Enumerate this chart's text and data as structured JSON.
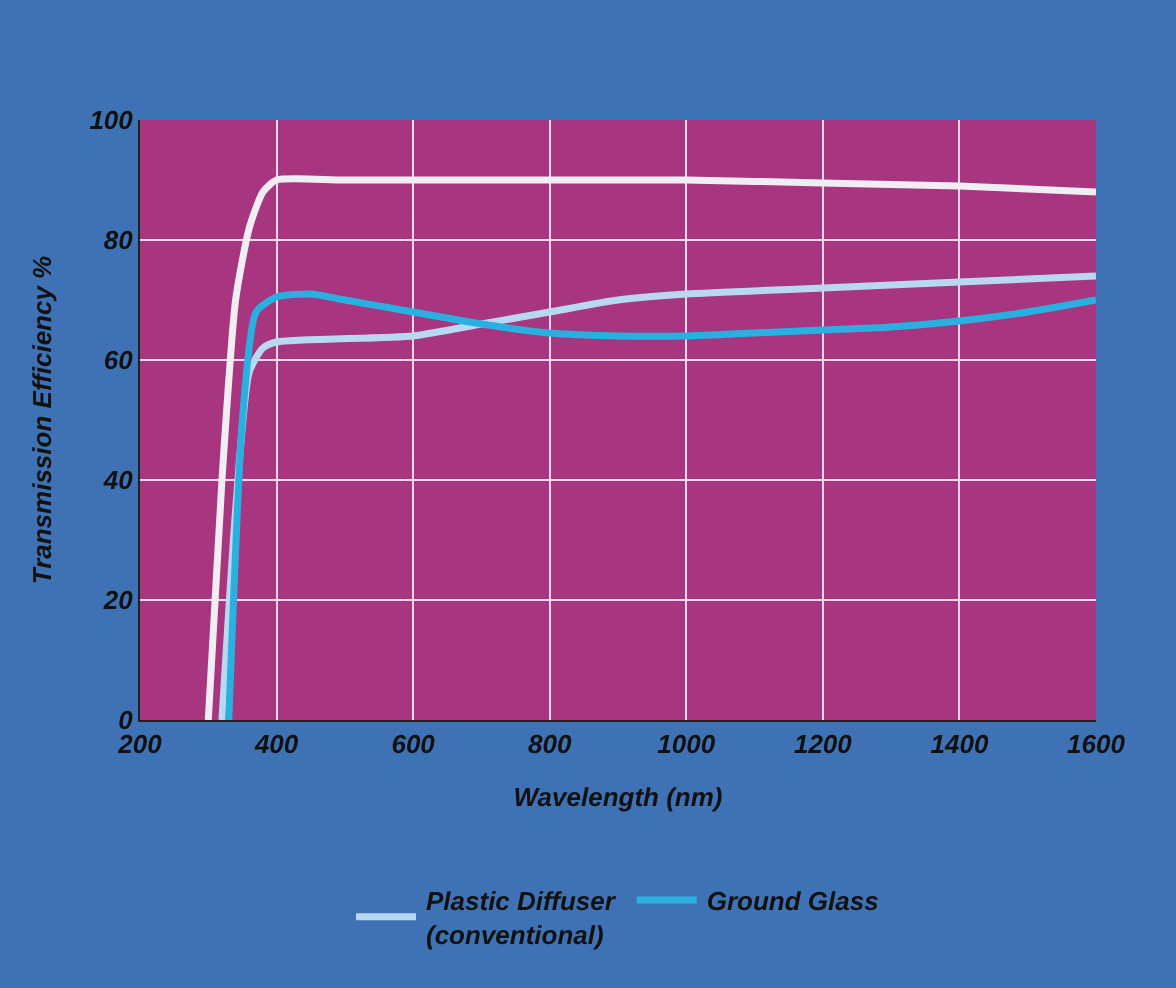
{
  "chart_data": {
    "type": "line",
    "xlabel": "Wavelength (nm)",
    "ylabel": "Transmission Efficiency %",
    "xlim": [
      200,
      1600
    ],
    "xticks": [
      200,
      400,
      600,
      800,
      1000,
      1200,
      1400,
      1600
    ],
    "ylim": [
      0,
      100
    ],
    "yticks": [
      0,
      20,
      40,
      60,
      80,
      100
    ],
    "grid": true,
    "legend": "bottom",
    "marker": "none",
    "line_style": "solid",
    "series": [
      {
        "color": "#f0eef2",
        "x": [
          300,
          320,
          340,
          360,
          380,
          400,
          500,
          800,
          1000,
          1200,
          1400,
          1600
        ],
        "values": [
          0,
          40,
          70,
          82,
          88,
          90,
          90,
          90,
          90,
          89.5,
          89,
          88
        ]
      },
      {
        "name": "Plastic Diffuser\n(conventional)",
        "color": "#b8d8f0",
        "x": [
          320,
          340,
          360,
          380,
          400,
          600,
          700,
          800,
          900,
          1000,
          1200,
          1400,
          1600
        ],
        "values": [
          0,
          35,
          58,
          62,
          63,
          64,
          66,
          68,
          70,
          71,
          72,
          73,
          74
        ]
      },
      {
        "name": "Ground Glass",
        "color": "#2ab0e0",
        "x": [
          330,
          350,
          370,
          400,
          450,
          500,
          600,
          700,
          800,
          900,
          1000,
          1100,
          1200,
          1300,
          1400,
          1500,
          1600
        ],
        "values": [
          0,
          50,
          68,
          70.5,
          71,
          70,
          68,
          66,
          64.5,
          64,
          64,
          64.5,
          65,
          65.5,
          66.5,
          68,
          70
        ]
      }
    ]
  }
}
